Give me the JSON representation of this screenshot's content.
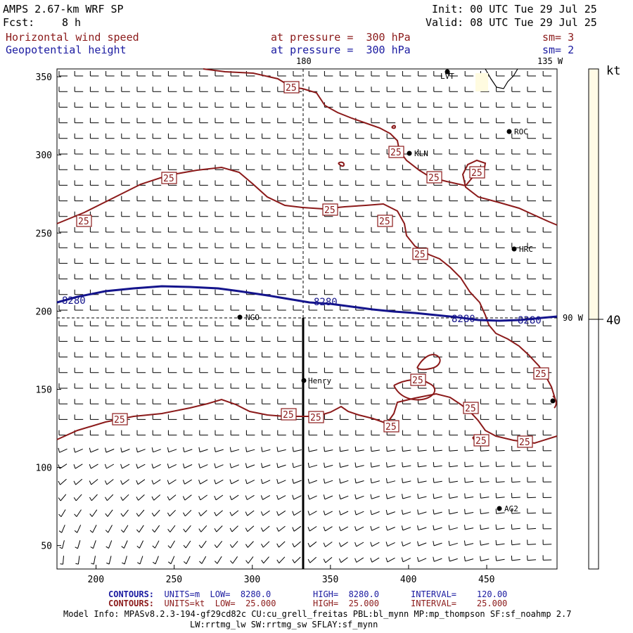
{
  "header": {
    "title": "AMPS 2.67-km WRF SP",
    "fcst_label": "Fcst:",
    "fcst_value": "8 h",
    "init": "Init: 00 UTC Tue 29 Jul 25",
    "valid": "Valid: 08 UTC Tue 29 Jul 25",
    "field1": "Horizontal wind speed",
    "field1_level": "at pressure =  300 hPa",
    "field1_sm": "sm= 3",
    "field2": "Geopotential height",
    "field2_level": "at pressure =  300 hPa",
    "field2_sm": "sm= 2"
  },
  "map": {
    "meridian_labels": {
      "lon180": "180",
      "lon135w": "135 W",
      "lon90w": "90 W"
    },
    "x_ticks": [
      "200",
      "250",
      "300",
      "350",
      "400",
      "450"
    ],
    "y_ticks": [
      "350",
      "300",
      "250",
      "200",
      "150",
      "100",
      "50"
    ],
    "stations": [
      "LVT",
      "ROC",
      "KLN",
      "HRC",
      "NGO",
      "Henry",
      "AG2"
    ],
    "height_contour_label": "8280",
    "speed_contour_label": "25"
  },
  "colorbar": {
    "unit": "kt",
    "tick_label": "40",
    "fill_color": "#fffbe6"
  },
  "colors": {
    "height_contour": "#14148c",
    "speed_contour": "#8b1a1a",
    "barbs": "#000000"
  },
  "footer": {
    "c1_head": "CONTOURS:",
    "c1_units": "UNITS=m",
    "c1_low": "LOW=  8280.0",
    "c1_high": "HIGH=  8280.0",
    "c1_int": "INTERVAL=    120.00",
    "c2_head": "CONTOURS:",
    "c2_units": "UNITS=kt",
    "c2_low": "LOW=  25.000",
    "c2_high": "HIGH=  25.000",
    "c2_int": "INTERVAL=    25.000",
    "model_info": "Model Info: MPASv8.2.3-194-gf29cd82c CU:cu_grell_freitas PBL:bl_mynn MP:mp_thompson SF:sf_noahmp 2.7",
    "model_info2": "LW:rrtmg_lw SW:rrtmg_sw SFLAY:sf_mynn"
  }
}
